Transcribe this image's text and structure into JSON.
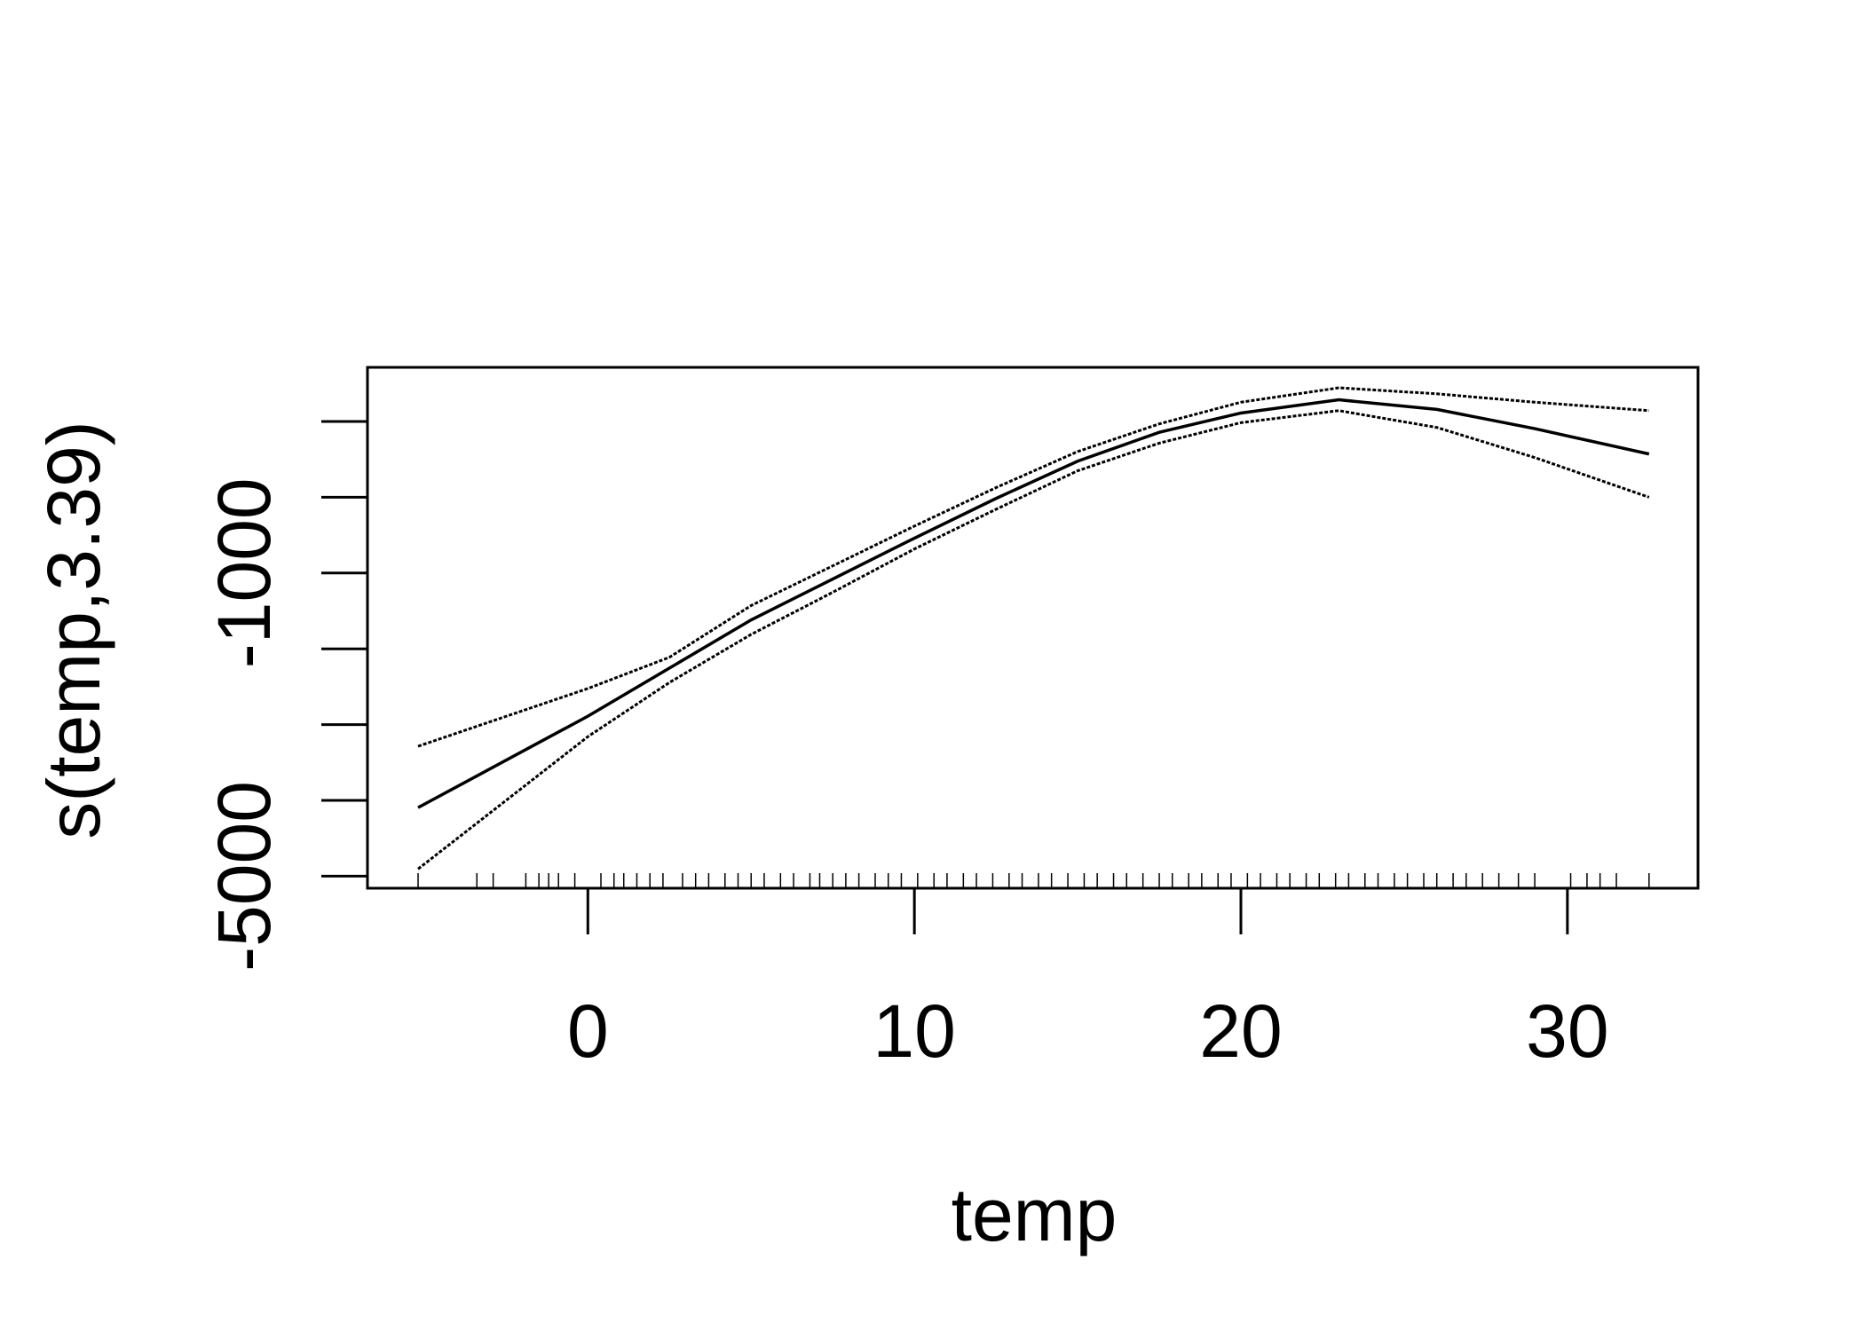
{
  "chart_data": {
    "type": "line",
    "xlabel": "temp",
    "ylabel": "s(temp,3.39)",
    "x": [
      -5.2,
      0,
      2.5,
      5,
      7.5,
      10,
      12.5,
      15,
      17.5,
      20,
      23,
      26,
      29,
      32.5
    ],
    "series": [
      {
        "style": "solid",
        "color": "#000000",
        "values": [
          -4095,
          -2889,
          -2254,
          -1619,
          -1079,
          -540,
          -16,
          476,
          857,
          1111,
          1286,
          1159,
          905,
          571
        ]
      },
      {
        "style": "dashed",
        "color": "#000000",
        "values": [
          -3286,
          -2524,
          -2111,
          -1429,
          -905,
          -381,
          127,
          603,
          968,
          1254,
          1444,
          1365,
          1254,
          1143
        ]
      },
      {
        "style": "dashed",
        "color": "#000000",
        "values": [
          -4905,
          -3159,
          -2444,
          -1810,
          -1254,
          -683,
          -159,
          349,
          714,
          984,
          1143,
          921,
          524,
          0
        ]
      }
    ],
    "rug": [
      -5.2,
      -3.4,
      -2.9,
      -1.9,
      -1.5,
      -1.2,
      -0.9,
      -0.4,
      0.4,
      0.8,
      1.1,
      1.5,
      1.9,
      2.3,
      2.9,
      3.3,
      3.7,
      4.2,
      4.6,
      5.0,
      5.4,
      5.9,
      6.3,
      6.8,
      7.1,
      7.5,
      7.9,
      8.3,
      8.8,
      9.2,
      9.6,
      10.1,
      10.6,
      11.0,
      11.5,
      11.9,
      12.4,
      12.9,
      13.3,
      13.8,
      14.2,
      14.7,
      15.2,
      15.6,
      16.1,
      16.5,
      17.0,
      17.5,
      17.9,
      18.4,
      18.8,
      19.3,
      19.7,
      20.2,
      20.6,
      21.1,
      21.5,
      22.0,
      22.4,
      22.9,
      23.3,
      23.8,
      24.2,
      24.7,
      25.1,
      25.6,
      26.0,
      26.5,
      26.9,
      27.4,
      27.9,
      28.5,
      29.0,
      30.1,
      30.6,
      31.0,
      31.5,
      32.5
    ],
    "xlim": [
      -6.75,
      34
    ],
    "ylim": [
      -5159,
      1714
    ],
    "xticks": [
      0,
      10,
      20,
      30
    ],
    "yticks": [
      -5000,
      {
        "value": -4000,
        "label": null
      },
      {
        "value": -3000,
        "label": null
      },
      {
        "value": -2000,
        "label": null
      },
      -1000,
      {
        "value": 0,
        "label": null
      },
      {
        "value": 1000,
        "label": null
      }
    ]
  }
}
